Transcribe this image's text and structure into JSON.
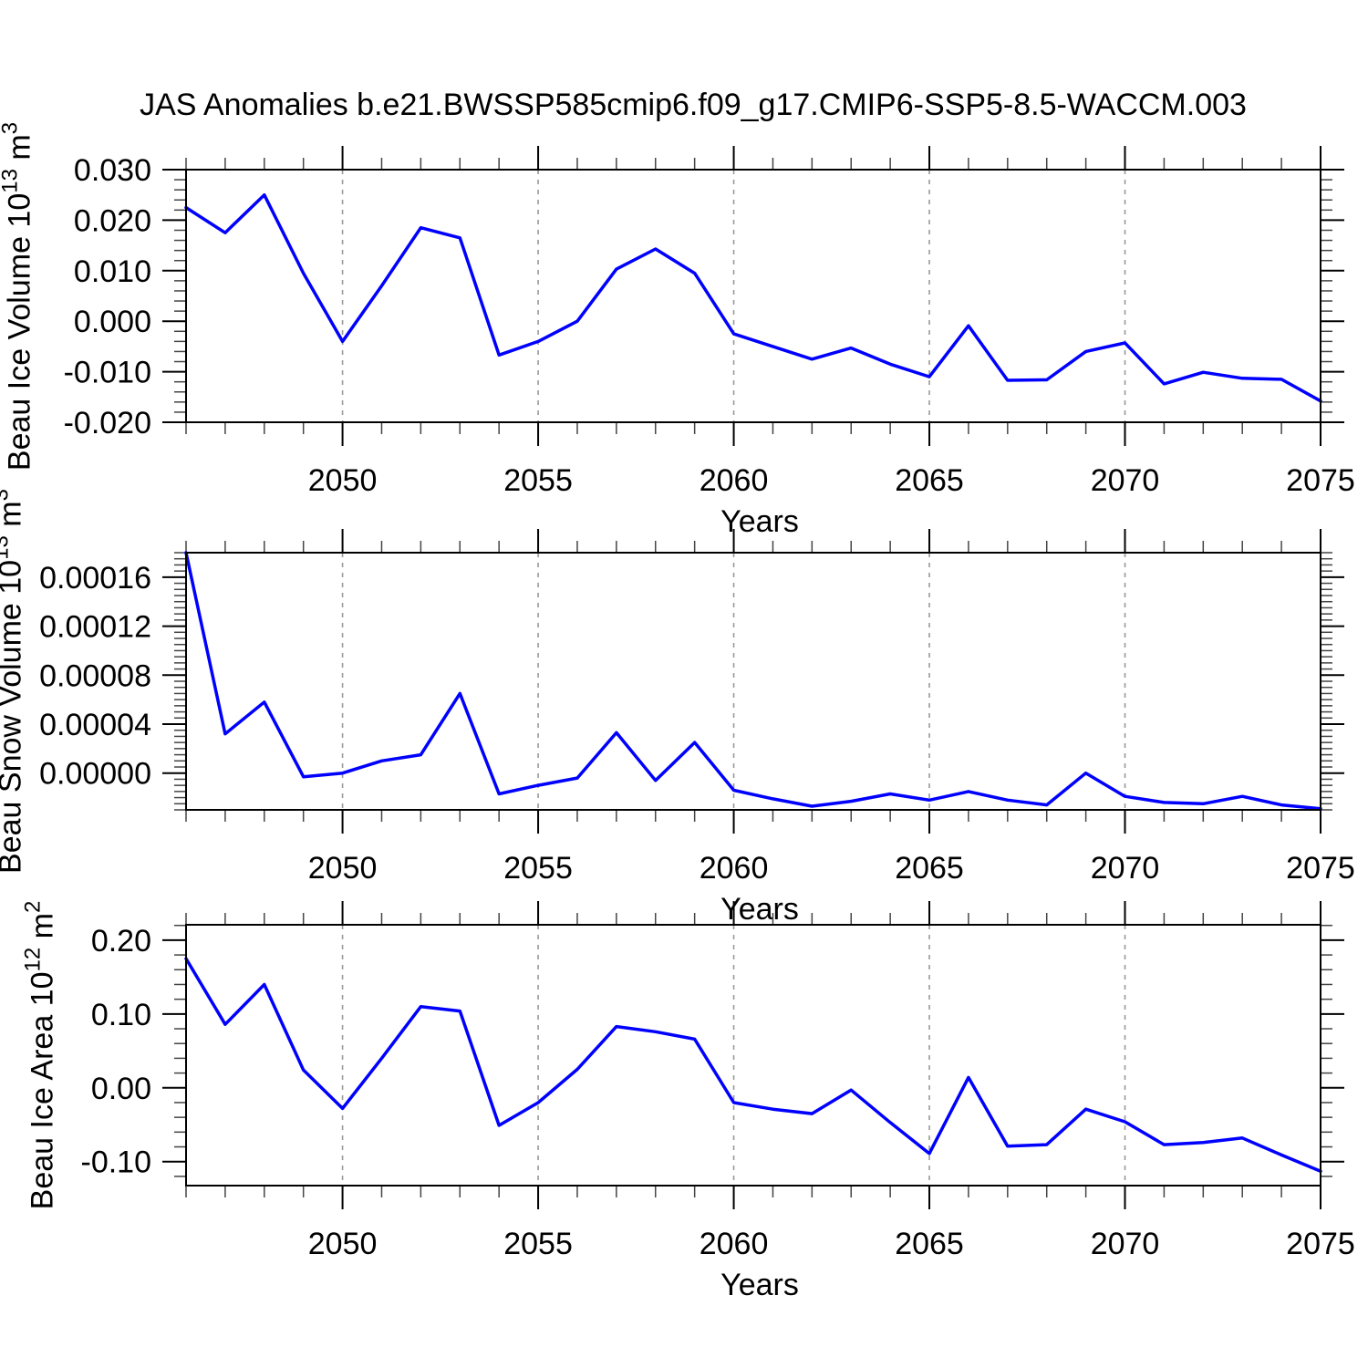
{
  "title": "JAS Anomalies b.e21.BWSSP585cmip6.f09_g17.CMIP6-SSP5-8.5-WACCM.003",
  "colors": {
    "line": "#0000ff",
    "frame": "#000000",
    "major_tick": "#000000",
    "minor_tick": "#444444",
    "grid": "#999999",
    "text": "#000000",
    "background": "#ffffff"
  },
  "x_axis": {
    "label": "Years",
    "start": 2046,
    "end": 2075,
    "major_tick_years": [
      2050,
      2055,
      2060,
      2065,
      2070,
      2075
    ],
    "major_tick_labels": [
      "2050",
      "2055",
      "2060",
      "2065",
      "2070",
      "2075"
    ],
    "gridline_years": [
      2050,
      2055,
      2060,
      2065,
      2070
    ],
    "minor_step": 1,
    "years": [
      2046,
      2047,
      2048,
      2049,
      2050,
      2051,
      2052,
      2053,
      2054,
      2055,
      2056,
      2057,
      2058,
      2059,
      2060,
      2061,
      2062,
      2063,
      2064,
      2065,
      2066,
      2067,
      2068,
      2069,
      2070,
      2071,
      2072,
      2073,
      2074,
      2075
    ]
  },
  "chart_data": [
    {
      "id": "beau-ice-volume",
      "type": "line",
      "ylabel": {
        "pre": "Beau Ice Volume 10",
        "sup1": "13",
        "mid": " m",
        "sup2": "3",
        "clipped": false
      },
      "ylim": [
        -0.02,
        0.03
      ],
      "yticks": [
        {
          "value": 0.03,
          "label": "0.030"
        },
        {
          "value": 0.02,
          "label": "0.020"
        },
        {
          "value": 0.01,
          "label": "0.010"
        },
        {
          "value": 0.0,
          "label": "0.000"
        },
        {
          "value": -0.01,
          "label": "-0.010"
        },
        {
          "value": -0.02,
          "label": "-0.020"
        }
      ],
      "minor_step": 0.002,
      "values": [
        0.0225,
        0.0175,
        0.025,
        0.0095,
        -0.004,
        0.007,
        0.0185,
        0.0165,
        -0.0067,
        -0.004,
        0.0,
        0.0103,
        0.0143,
        0.0095,
        -0.0025,
        -0.005,
        -0.0075,
        -0.0053,
        -0.0085,
        -0.011,
        -0.0009,
        -0.0117,
        -0.0116,
        -0.006,
        -0.0043,
        -0.0124,
        -0.0101,
        -0.0113,
        -0.0115,
        -0.0158
      ]
    },
    {
      "id": "beau-snow-volume",
      "type": "line",
      "ylabel": {
        "pre": "Beau Snow Volume 10",
        "sup1": "13",
        "mid": " m",
        "sup2": "3",
        "clipped": true
      },
      "ylim": [
        -3e-05,
        0.00018
      ],
      "yticks": [
        {
          "value": 0.00016,
          "label": "0.00016"
        },
        {
          "value": 0.00012,
          "label": "0.00012"
        },
        {
          "value": 8e-05,
          "label": "0.00008"
        },
        {
          "value": 4e-05,
          "label": "0.00004"
        },
        {
          "value": 0.0,
          "label": "0.00000"
        }
      ],
      "minor_step": 5e-06,
      "values": [
        0.00018,
        3.2e-05,
        5.8e-05,
        -3e-06,
        0.0,
        1e-05,
        1.5e-05,
        6.5e-05,
        -1.7e-05,
        -1e-05,
        -4e-06,
        3.3e-05,
        -6e-06,
        2.5e-05,
        -1.4e-05,
        -2.1e-05,
        -2.7e-05,
        -2.3e-05,
        -1.7e-05,
        -2.2e-05,
        -1.5e-05,
        -2.2e-05,
        -2.6e-05,
        0.0,
        -1.9e-05,
        -2.4e-05,
        -2.5e-05,
        -1.9e-05,
        -2.6e-05,
        -2.9e-05
      ]
    },
    {
      "id": "beau-ice-area",
      "type": "line",
      "ylabel": {
        "pre": "Beau Ice Area 10",
        "sup1": "12",
        "mid": " m",
        "sup2": "2",
        "clipped": false
      },
      "ylim": [
        -0.1325,
        0.2209
      ],
      "yticks": [
        {
          "value": 0.2,
          "label": "0.20"
        },
        {
          "value": 0.1,
          "label": "0.10"
        },
        {
          "value": 0.0,
          "label": "0.00"
        },
        {
          "value": -0.1,
          "label": "-0.10"
        }
      ],
      "minor_step": 0.02,
      "values": [
        0.175,
        0.086,
        0.14,
        0.024,
        -0.028,
        0.04,
        0.11,
        0.104,
        -0.051,
        -0.02,
        0.025,
        0.083,
        0.076,
        0.066,
        -0.02,
        -0.029,
        -0.035,
        -0.003,
        -0.047,
        -0.089,
        0.014,
        -0.079,
        -0.077,
        -0.029,
        -0.046,
        -0.077,
        -0.074,
        -0.068,
        -0.091,
        -0.113
      ]
    }
  ]
}
